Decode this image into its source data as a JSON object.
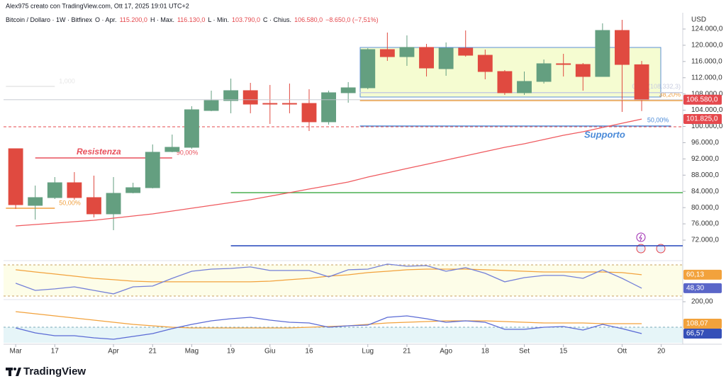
{
  "header": {
    "credit": "Alex975 creato con TradingView.com, Ott 17, 2025 19:01 UTC+2",
    "currency": "USD",
    "brand": "TradingView"
  },
  "annotations": {
    "resistance": "Resistenza",
    "support": "Supporto"
  },
  "chart_data": [
    {
      "type": "candlestick",
      "legend_parts": [
        {
          "text": "Bitcoin / Dollaro · 1W · Bitfinex",
          "color": "#131722"
        },
        {
          "text": "O · Apr.",
          "color": "#131722"
        },
        {
          "text": "115.200,0",
          "color": "#e5484d"
        },
        {
          "text": "H · Max.",
          "color": "#131722"
        },
        {
          "text": "116.130,0",
          "color": "#e5484d"
        },
        {
          "text": "L · Min.",
          "color": "#131722"
        },
        {
          "text": "103.790,0",
          "color": "#e5484d"
        },
        {
          "text": "C · Chius.",
          "color": "#131722"
        },
        {
          "text": "106.580,0",
          "color": "#e5484d"
        },
        {
          "text": "−8.650,0 (−7,51%)",
          "color": "#e5484d"
        }
      ],
      "x": [
        0,
        1,
        2,
        3,
        4,
        5,
        6,
        7,
        8,
        9,
        10,
        11,
        12,
        13,
        14,
        15,
        16,
        17,
        18,
        19,
        20,
        21,
        22,
        23,
        24,
        25,
        26,
        27,
        28,
        29,
        30,
        31,
        32
      ],
      "open": [
        94510,
        80550,
        82470,
        86130,
        82470,
        78460,
        83690,
        84910,
        93810,
        94860,
        103930,
        106380,
        108820,
        105670,
        105670,
        105670,
        101140,
        108300,
        109520,
        118940,
        117190,
        119470,
        114230,
        119290,
        117540,
        113530,
        108300,
        111090,
        115450,
        115270,
        112310,
        123650,
        115200
      ],
      "high": [
        94510,
        85430,
        87530,
        88750,
        87880,
        87530,
        86130,
        95560,
        98000,
        104980,
        108820,
        111790,
        110740,
        110220,
        110570,
        109170,
        108820,
        110920,
        119290,
        123130,
        122430,
        120340,
        120690,
        123650,
        118940,
        113880,
        113530,
        116500,
        117890,
        115620,
        125400,
        126270,
        116130
      ],
      "low": [
        79680,
        77060,
        82120,
        81950,
        77580,
        74440,
        83520,
        84740,
        93640,
        94510,
        103760,
        103240,
        103240,
        100620,
        103240,
        98870,
        100450,
        105850,
        109170,
        116150,
        114920,
        112310,
        112480,
        117190,
        111610,
        107770,
        107770,
        110570,
        112310,
        108820,
        112310,
        103590,
        103790
      ],
      "close": [
        80720,
        82470,
        86130,
        82470,
        78460,
        83520,
        84910,
        93640,
        94860,
        104110,
        106380,
        108820,
        105500,
        105500,
        105500,
        101140,
        108300,
        109520,
        118940,
        117190,
        119470,
        114400,
        119290,
        117540,
        113530,
        108300,
        111090,
        115450,
        115270,
        112310,
        123650,
        115270,
        106580
      ],
      "up_color": "#649f80",
      "down_color": "#e04a40",
      "series": [
        {
          "color": "#ef5a5f",
          "values": [
            75490,
            75840,
            76190,
            76540,
            76880,
            77410,
            77930,
            78460,
            79150,
            79850,
            80550,
            81250,
            81950,
            82820,
            83690,
            84570,
            85440,
            86310,
            87530,
            88580,
            89630,
            90670,
            91720,
            92770,
            93810,
            94860,
            95730,
            96780,
            97830,
            98700,
            99740,
            100790,
            101825
          ]
        }
      ],
      "levels": [
        {
          "value": 92240,
          "x": [
            1,
            8
          ],
          "color": "#e8505b",
          "label": "90,00%"
        },
        {
          "value": 79850,
          "x": [
            -0.5,
            2
          ],
          "color": "#f0a040",
          "label": "50,00%"
        },
        {
          "value": 109870,
          "x": [
            -0.5,
            2
          ],
          "color": "#e6e6e6",
          "label": "1,000"
        },
        {
          "value": 106380,
          "x": [
            17.6,
            34.1
          ],
          "color": "#f0a040",
          "label": "38,20%"
        },
        {
          "value": 108332.3,
          "x": [
            17.6,
            34.1
          ],
          "color": "#c8cde0",
          "label": "0,000(108.332,3)"
        },
        {
          "value": 100100,
          "x": [
            17.6,
            33.5
          ],
          "color": "#4a8ad8",
          "label": "50,00%"
        },
        {
          "value": 83690,
          "x": [
            11,
            34.1
          ],
          "color": "#4caf50"
        },
        {
          "value": 70600,
          "x": [
            11,
            34.1
          ],
          "color": "#2244bb"
        },
        {
          "value": 99920,
          "x": [
            -0.62,
            34.1
          ],
          "color": "#e5484d",
          "dash": true
        }
      ],
      "price_labels": [
        {
          "value": 106580,
          "label": "106.580,0",
          "color": "#e5484d",
          "line": true
        },
        {
          "value": 101825,
          "label": "101.825,0",
          "color": "#e5484d"
        }
      ],
      "xlim": [
        -0.62,
        34.1
      ],
      "ylim": [
        67460,
        128010
      ],
      "yticks": [
        {
          "value": 124000,
          "label": "124.000,0"
        },
        {
          "value": 120000,
          "label": "120.000,0"
        },
        {
          "value": 116000,
          "label": "116.000,0"
        },
        {
          "value": 112000,
          "label": "112.000,0"
        },
        {
          "value": 108000,
          "label": "108.000,0"
        },
        {
          "value": 104000,
          "label": "104.000,0"
        },
        {
          "value": 100000,
          "label": "100.000,0"
        },
        {
          "value": 96000,
          "label": "96.000,0"
        },
        {
          "value": 92000,
          "label": "92.000,0"
        },
        {
          "value": 88000,
          "label": "88.000,0"
        },
        {
          "value": 84000,
          "label": "84.000,0"
        },
        {
          "value": 80000,
          "label": "80.000,0"
        },
        {
          "value": 76000,
          "label": "76.000,0"
        },
        {
          "value": 72000,
          "label": "72.000,0"
        }
      ],
      "xticks": [
        {
          "value": 0,
          "label": "Mar"
        },
        {
          "value": 2,
          "label": "17"
        },
        {
          "value": 5,
          "label": "Apr"
        },
        {
          "value": 7,
          "label": "21"
        },
        {
          "value": 9,
          "label": "Mag"
        },
        {
          "value": 11,
          "label": "19"
        },
        {
          "value": 13,
          "label": "Giu"
        },
        {
          "value": 15,
          "label": "16"
        },
        {
          "value": 18,
          "label": "Lug"
        },
        {
          "value": 20,
          "label": "21"
        },
        {
          "value": 22,
          "label": "Ago"
        },
        {
          "value": 24,
          "label": "18"
        },
        {
          "value": 26,
          "label": "Set"
        },
        {
          "value": 28,
          "label": "15"
        },
        {
          "value": 31,
          "label": "Ott"
        },
        {
          "value": 33,
          "label": "20"
        }
      ]
    },
    {
      "type": "line",
      "x": [
        0,
        1,
        2,
        3,
        4,
        5,
        6,
        7,
        8,
        9,
        10,
        11,
        12,
        13,
        14,
        15,
        16,
        17,
        18,
        19,
        20,
        21,
        22,
        23,
        24,
        25,
        26,
        27,
        28,
        29,
        30,
        31,
        32
      ],
      "series": [
        {
          "color": "#f2a23c",
          "values": [
            64.5,
            62.6,
            60.8,
            58.9,
            57.0,
            55.8,
            54.5,
            53.9,
            53.9,
            53.9,
            53.9,
            53.9,
            53.9,
            54.5,
            55.8,
            57.0,
            58.9,
            60.1,
            62.0,
            63.2,
            64.5,
            65.1,
            65.1,
            65.1,
            64.5,
            63.9,
            63.2,
            62.6,
            62.6,
            62.6,
            62.6,
            62.0,
            60.13
          ]
        },
        {
          "color": "#7480d8",
          "values": [
            52.7,
            46.4,
            47.7,
            49.5,
            46.4,
            43.3,
            49.5,
            50.2,
            57.0,
            63.2,
            65.1,
            65.7,
            67.0,
            63.9,
            63.9,
            63.9,
            58.3,
            64.5,
            65.1,
            69.5,
            67.6,
            68.2,
            63.2,
            66.4,
            61.4,
            53.9,
            57.6,
            59.5,
            59.5,
            57.0,
            64.5,
            57.0,
            48.3
          ]
        }
      ],
      "price_labels": [
        {
          "value": 60.13,
          "label": "60,13",
          "color": "#f2a23c"
        },
        {
          "value": 48.3,
          "label": "48,30",
          "color": "#5a66c8"
        }
      ],
      "xlim": [
        -0.62,
        34.1
      ],
      "ylim": [
        38.9,
        71.3
      ]
    },
    {
      "type": "line",
      "x": [
        0,
        1,
        2,
        3,
        4,
        5,
        6,
        7,
        8,
        9,
        10,
        11,
        12,
        13,
        14,
        15,
        16,
        17,
        18,
        19,
        20,
        21,
        22,
        23,
        24,
        25,
        26,
        27,
        28,
        29,
        30,
        31,
        32
      ],
      "series": [
        {
          "color": "#f2a23c",
          "values": [
            158.5,
            149.6,
            140.7,
            131.8,
            122.9,
            114.0,
            105.1,
            99.2,
            93.3,
            90.3,
            90.3,
            90.3,
            90.3,
            90.3,
            90.3,
            93.3,
            96.2,
            99.2,
            105.1,
            111.0,
            114.0,
            116.9,
            119.9,
            119.9,
            119.9,
            116.9,
            114.0,
            111.0,
            111.0,
            111.0,
            108.07,
            108.07,
            108.07
          ]
        },
        {
          "color": "#5b6bd5",
          "values": [
            90.3,
            69.5,
            57.7,
            57.7,
            48.8,
            42.9,
            54.7,
            66.6,
            87.3,
            105.1,
            119.9,
            128.8,
            134.7,
            122.9,
            114.0,
            111.0,
            93.3,
            99.2,
            102.1,
            134.7,
            140.7,
            128.8,
            114.0,
            119.9,
            114.0,
            84.4,
            84.4,
            93.3,
            96.2,
            81.4,
            105.1,
            87.3,
            66.57
          ]
        }
      ],
      "price_labels": [
        {
          "value": 108.07,
          "label": "108,07",
          "color": "#f2a23c"
        },
        {
          "value": 66.57,
          "label": "66,57",
          "color": "#3550b8"
        }
      ],
      "xlim": [
        -0.62,
        34.1
      ],
      "ylim": [
        28.1,
        205.9
      ],
      "yticks": [
        {
          "value": 200,
          "label": "200,00"
        }
      ]
    }
  ]
}
